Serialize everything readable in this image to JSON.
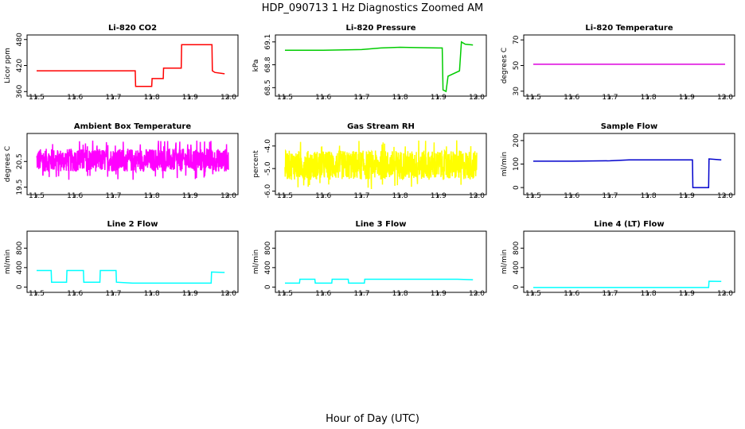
{
  "figure": {
    "title": "HDP_090713  1 Hz Diagnostics Zoomed AM",
    "xlabel": "Hour of Day (UTC)"
  },
  "chart_data": [
    {
      "type": "line",
      "title": "Li-820 CO2",
      "ylabel": "Licor ppm",
      "color": "#ff0000",
      "xlim": [
        11.5,
        12.0
      ],
      "ylim": [
        355,
        485
      ],
      "x_ticks": [
        "11.5",
        "11.6",
        "11.7",
        "11.8",
        "11.9",
        "12.0"
      ],
      "y_ticks": [
        "360",
        "420",
        "480"
      ],
      "series": [
        {
          "x": [
            11.5,
            11.757,
            11.758,
            11.8,
            11.801,
            11.83,
            11.831,
            11.877,
            11.878,
            11.957,
            11.958,
            11.965,
            11.99
          ],
          "y": [
            408,
            408,
            372,
            372,
            390,
            390,
            414,
            414,
            468,
            468,
            408,
            404,
            401
          ]
        }
      ]
    },
    {
      "type": "line",
      "title": "Li-820 Pressure",
      "ylabel": "kPa",
      "color": "#00cc00",
      "xlim": [
        11.5,
        12.0
      ],
      "ylim": [
        68.42,
        69.16
      ],
      "x_ticks": [
        "11.5",
        "11.6",
        "11.7",
        "11.8",
        "11.9",
        "12.0"
      ],
      "y_ticks": [
        "68.5",
        "68.8",
        "69.1"
      ],
      "series": [
        {
          "x": [
            11.5,
            11.6,
            11.7,
            11.75,
            11.8,
            11.9,
            11.91,
            11.912,
            11.92,
            11.925,
            11.955,
            11.96,
            11.97,
            11.99
          ],
          "y": [
            68.99,
            68.99,
            69.0,
            69.02,
            69.03,
            69.02,
            69.02,
            68.47,
            68.45,
            68.65,
            68.72,
            69.1,
            69.07,
            69.06
          ]
        }
      ]
    },
    {
      "type": "line",
      "title": "Li-820 Temperature",
      "ylabel": "degrees C",
      "color": "#dd00dd",
      "xlim": [
        11.5,
        12.0
      ],
      "ylim": [
        28,
        72
      ],
      "x_ticks": [
        "11.5",
        "11.6",
        "11.7",
        "11.8",
        "11.9",
        "12.0"
      ],
      "y_ticks": [
        "30",
        "50",
        "70"
      ],
      "series": [
        {
          "x": [
            11.5,
            12.0
          ],
          "y": [
            51,
            51
          ]
        }
      ]
    },
    {
      "type": "line",
      "title": "Ambient Box Temperature",
      "ylabel": "degrees C",
      "color": "#ff00ff",
      "xlim": [
        11.5,
        12.0
      ],
      "ylim": [
        19.3,
        21.5
      ],
      "x_ticks": [
        "11.5",
        "11.6",
        "11.7",
        "11.8",
        "11.9",
        "12.0"
      ],
      "y_ticks": [
        "19.5",
        "20.5"
      ],
      "series": [
        {
          "x": [
            11.5,
            12.0
          ],
          "y": [
            20.1,
            21.0
          ],
          "noise": "dense"
        }
      ]
    },
    {
      "type": "line",
      "title": "Gas Stream RH",
      "ylabel": "percent",
      "color": "#ffff00",
      "xlim": [
        11.5,
        12.0
      ],
      "ylim": [
        -6.05,
        -3.55
      ],
      "x_ticks": [
        "11.5",
        "11.6",
        "11.7",
        "11.8",
        "11.9",
        "12.0"
      ],
      "y_ticks": [
        "-6.0",
        "-5.0",
        "-4.0"
      ],
      "series": [
        {
          "x": [
            11.5,
            12.0
          ],
          "y": [
            -5.5,
            -4.2
          ],
          "noise": "dense"
        }
      ]
    },
    {
      "type": "line",
      "title": "Sample Flow",
      "ylabel": "ml/min",
      "color": "#0000cc",
      "xlim": [
        11.5,
        12.0
      ],
      "ylim": [
        -20,
        220
      ],
      "x_ticks": [
        "11.5",
        "11.6",
        "11.7",
        "11.8",
        "11.9",
        "12.0"
      ],
      "y_ticks": [
        "0",
        "100",
        "200"
      ],
      "series": [
        {
          "x": [
            11.5,
            11.6,
            11.7,
            11.75,
            11.8,
            11.915,
            11.916,
            11.957,
            11.958,
            11.99
          ],
          "y": [
            112,
            112,
            114,
            118,
            118,
            118,
            0,
            0,
            122,
            118
          ]
        }
      ]
    },
    {
      "type": "line",
      "title": "Line 2 Flow",
      "ylabel": "ml/min",
      "color": "#00ffff",
      "xlim": [
        11.5,
        12.0
      ],
      "ylim": [
        -60,
        1100
      ],
      "x_ticks": [
        "11.5",
        "11.6",
        "11.7",
        "11.8",
        "11.9",
        "12.0"
      ],
      "y_ticks": [
        "0",
        "400",
        "800"
      ],
      "series": [
        {
          "x": [
            11.5,
            11.538,
            11.539,
            11.578,
            11.579,
            11.622,
            11.623,
            11.665,
            11.666,
            11.707,
            11.708,
            11.75,
            11.955,
            11.956,
            11.99
          ],
          "y": [
            340,
            340,
            100,
            100,
            340,
            340,
            100,
            100,
            340,
            340,
            100,
            80,
            80,
            310,
            300
          ]
        }
      ]
    },
    {
      "type": "line",
      "title": "Line 3 Flow",
      "ylabel": "ml/min",
      "color": "#00ffff",
      "xlim": [
        11.5,
        12.0
      ],
      "ylim": [
        -60,
        1100
      ],
      "x_ticks": [
        "11.5",
        "11.6",
        "11.7",
        "11.8",
        "11.9",
        "12.0"
      ],
      "y_ticks": [
        "0",
        "400",
        "800"
      ],
      "series": [
        {
          "x": [
            11.5,
            11.538,
            11.539,
            11.578,
            11.579,
            11.622,
            11.623,
            11.665,
            11.666,
            11.707,
            11.708,
            11.95,
            11.99
          ],
          "y": [
            80,
            80,
            160,
            160,
            80,
            80,
            160,
            160,
            80,
            80,
            160,
            160,
            150
          ]
        }
      ]
    },
    {
      "type": "line",
      "title": "Line 4 (LT) Flow",
      "ylabel": "ml/min",
      "color": "#00ffff",
      "xlim": [
        11.5,
        12.0
      ],
      "ylim": [
        -60,
        1100
      ],
      "x_ticks": [
        "11.5",
        "11.6",
        "11.7",
        "11.8",
        "11.9",
        "12.0"
      ],
      "y_ticks": [
        "0",
        "400",
        "800"
      ],
      "series": [
        {
          "x": [
            11.5,
            11.957,
            11.958,
            11.99
          ],
          "y": [
            -10,
            -10,
            120,
            115
          ]
        }
      ]
    }
  ]
}
